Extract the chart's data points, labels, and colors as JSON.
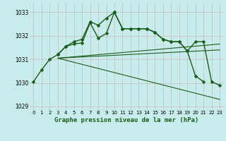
{
  "title": "Graphe pression niveau de la mer (hPa)",
  "background_color": "#c8ecec",
  "grid_color": "#b0d0d0",
  "line_color": "#1a5c1a",
  "xlim": [
    -0.5,
    23.5
  ],
  "ylim": [
    1028.85,
    1033.4
  ],
  "yticks": [
    1029,
    1030,
    1031,
    1032,
    1033
  ],
  "xticks": [
    0,
    1,
    2,
    3,
    4,
    5,
    6,
    7,
    8,
    9,
    10,
    11,
    12,
    13,
    14,
    15,
    16,
    17,
    18,
    19,
    20,
    21,
    22,
    23
  ],
  "series": [
    {
      "x": [
        0,
        1,
        2,
        3,
        4,
        5,
        6,
        7,
        8,
        9,
        10,
        11,
        12,
        13,
        14,
        15,
        16,
        17,
        18,
        19,
        20,
        21
      ],
      "y": [
        1030.05,
        1030.55,
        1031.0,
        1031.2,
        1031.55,
        1031.75,
        1031.85,
        1032.6,
        1032.45,
        1032.75,
        1033.0,
        1032.3,
        1032.3,
        1032.3,
        1032.3,
        1032.15,
        1031.85,
        1031.75,
        1031.75,
        1031.35,
        1030.3,
        1030.05
      ],
      "marker": true,
      "linewidth": 1.0,
      "markersize": 2.5
    },
    {
      "x": [
        3,
        4,
        5,
        6,
        7,
        8,
        9,
        10,
        11,
        12,
        13,
        14,
        15,
        16,
        17,
        18,
        19,
        20,
        21,
        22,
        23
      ],
      "y": [
        1031.2,
        1031.55,
        1031.65,
        1031.7,
        1032.55,
        1031.9,
        1032.1,
        1033.0,
        1032.3,
        1032.3,
        1032.3,
        1032.3,
        1032.15,
        1031.85,
        1031.75,
        1031.75,
        1031.35,
        1031.75,
        1031.75,
        1030.05,
        1029.9
      ],
      "marker": true,
      "linewidth": 1.0,
      "markersize": 2.5
    },
    {
      "x": [
        3,
        23
      ],
      "y": [
        1031.05,
        1031.4
      ],
      "marker": false,
      "linewidth": 0.8
    },
    {
      "x": [
        3,
        23
      ],
      "y": [
        1031.05,
        1031.65
      ],
      "marker": false,
      "linewidth": 0.8
    },
    {
      "x": [
        3,
        23
      ],
      "y": [
        1031.05,
        1029.3
      ],
      "marker": false,
      "linewidth": 0.8
    }
  ]
}
